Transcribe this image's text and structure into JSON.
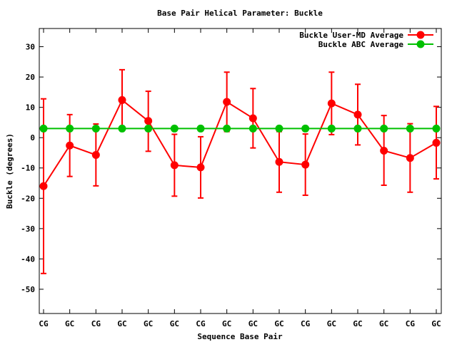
{
  "chart_data": {
    "type": "line",
    "title": "Base Pair Helical Parameter: Buckle",
    "xlabel": "Sequence Base Pair",
    "ylabel": "Buckle (degrees)",
    "categories": [
      "CG",
      "GC",
      "CG",
      "GC",
      "GC",
      "GC",
      "CG",
      "GC",
      "GC",
      "GC",
      "CG",
      "GC",
      "GC",
      "GC",
      "CG",
      "GC"
    ],
    "ylim": [
      -58,
      36
    ],
    "yticks": [
      30,
      20,
      10,
      0,
      -10,
      -20,
      -30,
      -40,
      -50
    ],
    "legend_position": "top-right",
    "grid": false,
    "series": [
      {
        "name": "Buckle User-MD Average",
        "color": "#ff0000",
        "values": [
          -16.0,
          -2.6,
          -5.7,
          12.4,
          5.5,
          -9.1,
          -9.8,
          11.8,
          6.4,
          -8.0,
          -8.9,
          11.3,
          7.6,
          -4.3,
          -6.7,
          -1.7
        ],
        "err_low": [
          -44.8,
          -12.8,
          -15.9,
          2.8,
          -4.5,
          -19.3,
          -19.9,
          2.0,
          -3.4,
          -18.0,
          -19.0,
          1.0,
          -2.4,
          -15.7,
          -18.0,
          -13.6
        ],
        "err_high": [
          12.8,
          7.6,
          4.5,
          22.4,
          15.3,
          1.1,
          0.3,
          21.6,
          16.2,
          2.0,
          1.2,
          21.6,
          17.6,
          7.3,
          4.6,
          10.3
        ]
      },
      {
        "name": "Buckle ABC Average",
        "color": "#00c000",
        "values": [
          3.0,
          3.0,
          3.0,
          3.0,
          3.0,
          3.0,
          3.0,
          3.0,
          3.0,
          3.0,
          3.0,
          3.0,
          3.0,
          3.0,
          3.0,
          3.0
        ]
      }
    ]
  }
}
